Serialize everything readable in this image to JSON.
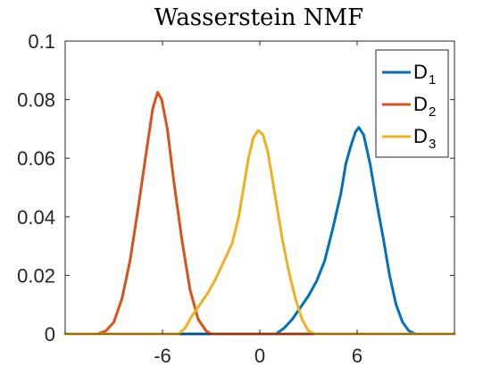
{
  "chart_data": {
    "type": "line",
    "title": "Wasserstein NMF",
    "xlabel": "",
    "ylabel": "",
    "xlim": [
      -12,
      12
    ],
    "ylim": [
      0,
      0.1
    ],
    "x_ticks": [
      -6,
      0,
      6
    ],
    "x_tick_labels": [
      "-6",
      "0",
      "6"
    ],
    "y_ticks": [
      0,
      0.02,
      0.04,
      0.06,
      0.08,
      0.1
    ],
    "y_tick_labels": [
      "0",
      "0.02",
      "0.04",
      "0.06",
      "0.08",
      "0.1"
    ],
    "grid": false,
    "legend_position": "top-right",
    "series": [
      {
        "name": "D",
        "subscript": "1",
        "color": "#0072BD",
        "points": [
          [
            -12,
            0
          ],
          [
            1,
            0
          ],
          [
            1.5,
            0.002
          ],
          [
            2,
            0.005
          ],
          [
            2.5,
            0.009
          ],
          [
            3,
            0.013
          ],
          [
            3.5,
            0.018
          ],
          [
            4,
            0.025
          ],
          [
            4.5,
            0.036
          ],
          [
            5,
            0.048
          ],
          [
            5.3,
            0.058
          ],
          [
            5.6,
            0.064
          ],
          [
            5.9,
            0.069
          ],
          [
            6.1,
            0.0705
          ],
          [
            6.4,
            0.068
          ],
          [
            6.8,
            0.058
          ],
          [
            7.2,
            0.045
          ],
          [
            7.6,
            0.033
          ],
          [
            8,
            0.02
          ],
          [
            8.4,
            0.01
          ],
          [
            8.8,
            0.004
          ],
          [
            9.2,
            0.001
          ],
          [
            9.6,
            0
          ],
          [
            12,
            0
          ]
        ]
      },
      {
        "name": "D",
        "subscript": "2",
        "color": "#D95319",
        "points": [
          [
            -12,
            0
          ],
          [
            -10,
            0
          ],
          [
            -9.5,
            0.001
          ],
          [
            -9,
            0.004
          ],
          [
            -8.5,
            0.012
          ],
          [
            -8,
            0.025
          ],
          [
            -7.5,
            0.043
          ],
          [
            -7,
            0.062
          ],
          [
            -6.6,
            0.077
          ],
          [
            -6.3,
            0.0825
          ],
          [
            -6.05,
            0.08
          ],
          [
            -5.7,
            0.07
          ],
          [
            -5.3,
            0.052
          ],
          [
            -4.8,
            0.032
          ],
          [
            -4.3,
            0.015
          ],
          [
            -3.8,
            0.005
          ],
          [
            -3.3,
            0.001
          ],
          [
            -3,
            0
          ],
          [
            12,
            0
          ]
        ]
      },
      {
        "name": "D",
        "subscript": "3",
        "color": "#EDB120",
        "points": [
          [
            -12,
            0
          ],
          [
            -5,
            0
          ],
          [
            -4.6,
            0.002
          ],
          [
            -4.2,
            0.006
          ],
          [
            -3.7,
            0.01
          ],
          [
            -3.2,
            0.014
          ],
          [
            -2.7,
            0.019
          ],
          [
            -2.2,
            0.025
          ],
          [
            -1.7,
            0.031
          ],
          [
            -1.3,
            0.04
          ],
          [
            -1,
            0.05
          ],
          [
            -0.7,
            0.06
          ],
          [
            -0.4,
            0.067
          ],
          [
            -0.1,
            0.0695
          ],
          [
            0.2,
            0.068
          ],
          [
            0.5,
            0.062
          ],
          [
            0.8,
            0.052
          ],
          [
            1.1,
            0.042
          ],
          [
            1.4,
            0.032
          ],
          [
            1.8,
            0.021
          ],
          [
            2.2,
            0.012
          ],
          [
            2.6,
            0.005
          ],
          [
            3,
            0.001
          ],
          [
            3.4,
            0
          ],
          [
            12,
            0
          ]
        ]
      }
    ]
  }
}
